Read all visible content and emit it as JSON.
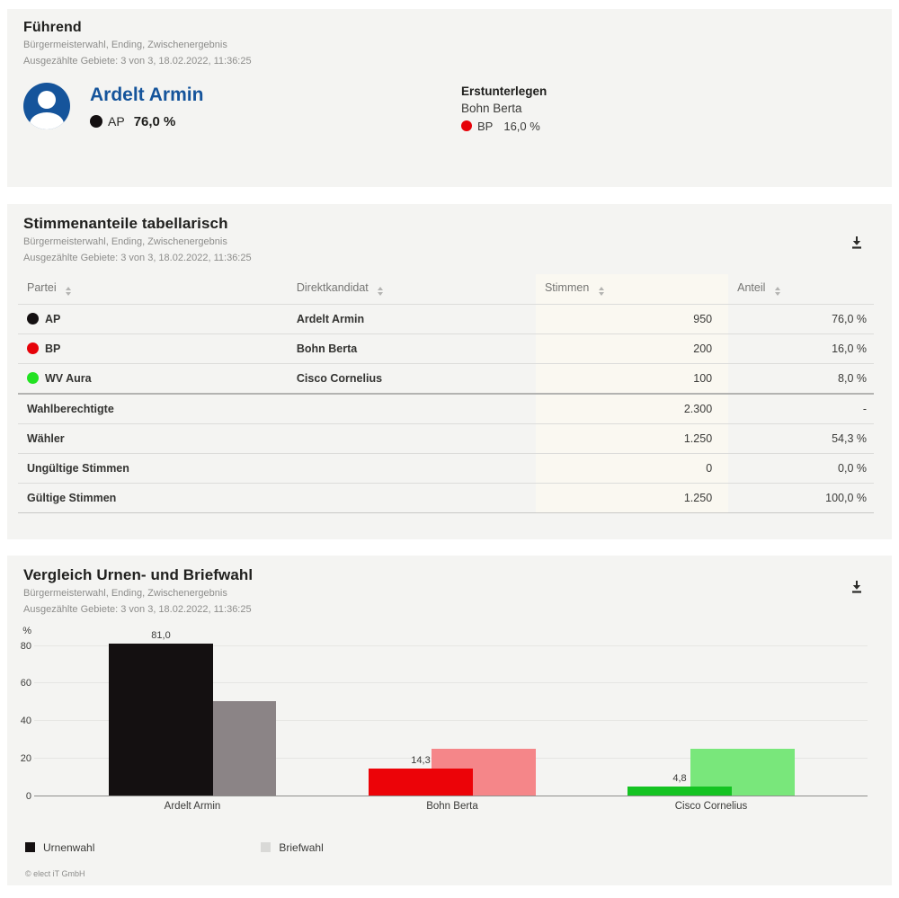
{
  "leading_card": {
    "title": "Führend",
    "subtitle": "Bürgermeisterwahl, Ending, Zwischenergebnis",
    "counted_line": "Ausgezählte Gebiete: 3 von 3, 18.02.2022, 11:36:25",
    "winner": {
      "name": "Ardelt Armin",
      "party": "AP",
      "party_color": "#141011",
      "share": "76,0 %"
    },
    "runner_up": {
      "label": "Erstunterlegen",
      "name": "Bohn Berta",
      "party": "BP",
      "party_color": "#e60209",
      "share": "16,0 %"
    }
  },
  "table_card": {
    "title": "Stimmenanteile tabellarisch",
    "subtitle": "Bürgermeisterwahl, Ending, Zwischenergebnis",
    "counted_line": "Ausgezählte Gebiete: 3 von 3, 18.02.2022, 11:36:25",
    "columns": [
      "Partei",
      "Direktkandidat",
      "Stimmen",
      "Anteil"
    ],
    "rows": [
      {
        "party": "AP",
        "dot_color": "#141011",
        "candidate": "Ardelt Armin",
        "votes": "950",
        "share": "76,0 %"
      },
      {
        "party": "BP",
        "dot_color": "#e60209",
        "candidate": "Bohn Berta",
        "votes": "200",
        "share": "16,0 %"
      },
      {
        "party": "WV Aura",
        "dot_color": "#22e222",
        "candidate": "Cisco Cornelius",
        "votes": "100",
        "share": "8,0 %"
      }
    ],
    "summary_rows": [
      {
        "label": "Wahlberechtigte",
        "votes": "2.300",
        "share": "-"
      },
      {
        "label": "Wähler",
        "votes": "1.250",
        "share": "54,3 %"
      },
      {
        "label": "Ungültige Stimmen",
        "votes": "0",
        "share": "0,0 %"
      },
      {
        "label": "Gültige Stimmen",
        "votes": "1.250",
        "share": "100,0 %"
      }
    ]
  },
  "chart_card": {
    "title": "Vergleich Urnen- und Briefwahl",
    "subtitle": "Bürgermeisterwahl, Ending, Zwischenergebnis",
    "counted_line": "Ausgezählte Gebiete: 3 von 3, 18.02.2022, 11:36:25",
    "legend": [
      {
        "label": "Urnenwahl",
        "color": "#141011"
      },
      {
        "label": "Briefwahl",
        "color": "#d9d9d7"
      }
    ],
    "copyright": "© elect iT GmbH"
  },
  "chart_data": {
    "type": "bar",
    "title": "Vergleich Urnen- und Briefwahl",
    "unit": "%",
    "categories": [
      "Ardelt Armin",
      "Bohn Berta",
      "Cisco Cornelius"
    ],
    "series": [
      {
        "name": "Urnenwahl",
        "values": [
          81.0,
          14.3,
          4.8
        ],
        "labels": [
          "81,0",
          "14,3",
          "4,8"
        ],
        "colors": [
          "#141011",
          "#ec0308",
          "#14c322"
        ]
      },
      {
        "name": "Briefwahl",
        "values": [
          50,
          25,
          25
        ],
        "labels": [
          "",
          "",
          ""
        ],
        "colors": [
          "#8b8486",
          "#f58689",
          "#79e77b"
        ]
      }
    ],
    "yticks": [
      0,
      20,
      40,
      60,
      80
    ],
    "ylim": [
      0,
      92
    ],
    "grid": true,
    "legend_position": "bottom",
    "value_labels_on_series": "Urnenwahl"
  }
}
